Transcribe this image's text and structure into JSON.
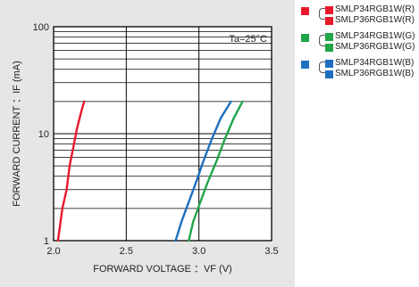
{
  "chart_data": {
    "type": "line",
    "x_scale": "linear",
    "y_scale": "log",
    "xlim": [
      2.0,
      3.5
    ],
    "ylim": [
      1,
      100
    ],
    "x_ticks": [
      "2.0",
      "2.5",
      "3.0",
      "3.5"
    ],
    "y_ticks": [
      "1",
      "10",
      "100"
    ],
    "xlabel": "FORWARD VOLTAGE ：VF  (V)",
    "ylabel": "FORWARD CURRENT ：IF  (mA)",
    "annotation": "Ta=25°C",
    "grid": true,
    "series": [
      {
        "name": "SMLP34RGB1W(R) / SMLP36RGB1W(R)",
        "color": "#e8192c",
        "points": [
          [
            2.03,
            1
          ],
          [
            2.06,
            2
          ],
          [
            2.09,
            3
          ],
          [
            2.11,
            5
          ],
          [
            2.14,
            8
          ],
          [
            2.16,
            11
          ],
          [
            2.19,
            16
          ],
          [
            2.21,
            20
          ]
        ]
      },
      {
        "name": "SMLP34RGB1W(B) / SMLP36RGB1W(B)",
        "color": "#1e6fbf",
        "points": [
          [
            2.84,
            1
          ],
          [
            2.88,
            1.5
          ],
          [
            2.93,
            2.3
          ],
          [
            2.98,
            3.5
          ],
          [
            3.03,
            5.5
          ],
          [
            3.09,
            9
          ],
          [
            3.15,
            14
          ],
          [
            3.22,
            20
          ]
        ]
      },
      {
        "name": "SMLP34RGB1W(G) / SMLP36RGB1W(G)",
        "color": "#21a548",
        "points": [
          [
            2.93,
            1
          ],
          [
            2.96,
            1.5
          ],
          [
            3.01,
            2.3
          ],
          [
            3.06,
            3.5
          ],
          [
            3.12,
            5.5
          ],
          [
            3.18,
            9
          ],
          [
            3.24,
            14
          ],
          [
            3.3,
            20
          ]
        ]
      }
    ]
  },
  "legend": {
    "groups": [
      {
        "color": "#e8192c",
        "items": [
          "SMLP34RGB1W(R)",
          "SMLP36RGB1W(R)"
        ]
      },
      {
        "color": "#21a548",
        "items": [
          "SMLP34RGB1W(G)",
          "SMLP36RGB1W(G)"
        ]
      },
      {
        "color": "#1e6fbf",
        "items": [
          "SMLP34RGB1W(B)",
          "SMLP36RGB1W(B)"
        ]
      }
    ]
  },
  "colors": {
    "panel_background": "#e6e6e6",
    "grid": "#000000"
  }
}
